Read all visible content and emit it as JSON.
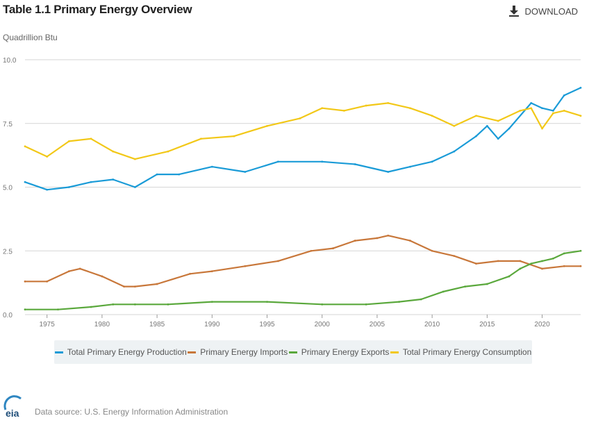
{
  "header": {
    "title": "Table 1.1 Primary Energy Overview",
    "download_label": "DOWNLOAD"
  },
  "footer": {
    "source": "Data source: U.S. Energy Information Administration",
    "logo_text": "eia"
  },
  "icons": {
    "download": "download-icon",
    "logo": "eia-logo-icon"
  },
  "chart_data": {
    "type": "line",
    "ylabel": "Quadrillion Btu",
    "ylim": [
      0,
      10
    ],
    "xlim": [
      1973,
      2023.5
    ],
    "y_ticks": [
      0,
      2.5,
      5.0,
      7.5,
      10.0
    ],
    "y_tick_labels": [
      "0.0",
      "2.5",
      "5.0",
      "7.5",
      "10.0"
    ],
    "x_ticks": [
      1975,
      1980,
      1985,
      1990,
      1995,
      2000,
      2005,
      2010,
      2015,
      2020
    ],
    "x_tick_labels": [
      "1975",
      "1980",
      "1985",
      "1990",
      "1995",
      "2000",
      "2005",
      "2010",
      "2015",
      "2020"
    ],
    "grid": "horizontal",
    "legend": "bottom",
    "series": [
      {
        "name": "Total Primary Energy Production",
        "color": "#1a9bd7",
        "x": [
          1973,
          1975,
          1977,
          1979,
          1981,
          1983,
          1985,
          1987,
          1990,
          1993,
          1996,
          2000,
          2003,
          2006,
          2008,
          2010,
          2012,
          2014,
          2015,
          2016,
          2017,
          2019,
          2020,
          2021,
          2022,
          2023.5
        ],
        "values": [
          5.2,
          4.9,
          5.0,
          5.2,
          5.3,
          5.0,
          5.5,
          5.5,
          5.8,
          5.6,
          6.0,
          6.0,
          5.9,
          5.6,
          5.8,
          6.0,
          6.4,
          7.0,
          7.4,
          6.9,
          7.3,
          8.3,
          8.1,
          8.0,
          8.6,
          8.9
        ]
      },
      {
        "name": "Primary Energy Imports",
        "color": "#c8773a",
        "x": [
          1973,
          1975,
          1977,
          1978,
          1980,
          1982,
          1983,
          1985,
          1988,
          1990,
          1993,
          1996,
          1999,
          2001,
          2003,
          2005,
          2006,
          2008,
          2010,
          2012,
          2014,
          2016,
          2018,
          2020,
          2022,
          2023.5
        ],
        "values": [
          1.3,
          1.3,
          1.7,
          1.8,
          1.5,
          1.1,
          1.1,
          1.2,
          1.6,
          1.7,
          1.9,
          2.1,
          2.5,
          2.6,
          2.9,
          3.0,
          3.1,
          2.9,
          2.5,
          2.3,
          2.0,
          2.1,
          2.1,
          1.8,
          1.9,
          1.9
        ]
      },
      {
        "name": "Primary Energy Exports",
        "color": "#5aa83c",
        "x": [
          1973,
          1976,
          1979,
          1981,
          1983,
          1986,
          1990,
          1995,
          2000,
          2004,
          2007,
          2009,
          2011,
          2013,
          2015,
          2017,
          2018,
          2019,
          2020,
          2021,
          2022,
          2023.5
        ],
        "values": [
          0.2,
          0.2,
          0.3,
          0.4,
          0.4,
          0.4,
          0.5,
          0.5,
          0.4,
          0.4,
          0.5,
          0.6,
          0.9,
          1.1,
          1.2,
          1.5,
          1.8,
          2.0,
          2.1,
          2.2,
          2.4,
          2.5
        ]
      },
      {
        "name": "Total Primary Energy Consumption",
        "color": "#f2c818",
        "x": [
          1973,
          1975,
          1977,
          1979,
          1981,
          1983,
          1986,
          1989,
          1992,
          1995,
          1998,
          2000,
          2002,
          2004,
          2006,
          2008,
          2010,
          2012,
          2014,
          2016,
          2018,
          2019,
          2020,
          2021,
          2022,
          2023.5
        ],
        "values": [
          6.6,
          6.2,
          6.8,
          6.9,
          6.4,
          6.1,
          6.4,
          6.9,
          7.0,
          7.4,
          7.7,
          8.1,
          8.0,
          8.2,
          8.3,
          8.1,
          7.8,
          7.4,
          7.8,
          7.6,
          8.0,
          8.1,
          7.3,
          7.9,
          8.0,
          7.8
        ]
      }
    ]
  }
}
